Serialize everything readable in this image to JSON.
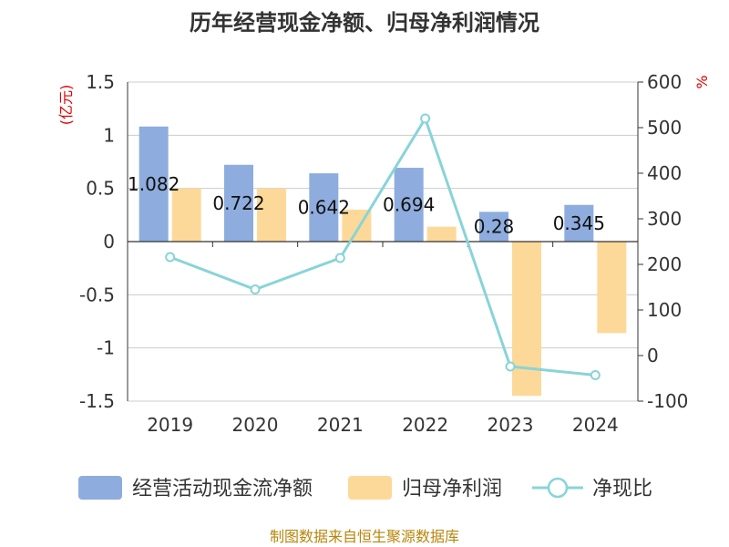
{
  "chart_data": {
    "type": "bar",
    "title": "历年经营现金净额、归母净利润情况",
    "categories": [
      "2019",
      "2020",
      "2021",
      "2022",
      "2023",
      "2024"
    ],
    "series": [
      {
        "name": "经营活动现金流净额",
        "type": "bar",
        "axis": "left",
        "color": "#8eadde",
        "values": [
          1.082,
          0.722,
          0.642,
          0.694,
          0.28,
          0.345
        ]
      },
      {
        "name": "归母净利润",
        "type": "bar",
        "axis": "left",
        "color": "#fdd999",
        "values": [
          0.5,
          0.5,
          0.3,
          0.14,
          -1.45,
          -0.86
        ]
      },
      {
        "name": "净现比",
        "type": "line",
        "axis": "right",
        "color": "#88d4d8",
        "values": [
          216,
          145,
          214,
          520,
          -24,
          -43
        ]
      }
    ],
    "data_labels": [
      "1.082",
      "0.722",
      "0.642",
      "0.694",
      "0.28",
      "0.345"
    ],
    "y_left": {
      "unit": "(亿元)",
      "ylim": [
        -1.5,
        1.5
      ],
      "ticks": [
        1.5,
        1,
        0.5,
        0,
        -0.5,
        -1,
        -1.5
      ],
      "tick_labels": [
        "1.5",
        "1",
        "0.5",
        "0",
        "-0.5",
        "-1",
        "-1.5"
      ]
    },
    "y_right": {
      "unit": "%",
      "ylim": [
        -100,
        600
      ],
      "ticks": [
        600,
        500,
        400,
        300,
        200,
        100,
        0,
        -100
      ],
      "tick_labels": [
        "600",
        "500",
        "400",
        "300",
        "200",
        "100",
        "0",
        "-100"
      ]
    },
    "grid": true,
    "legend_position": "bottom",
    "source": "制图数据来自恒生聚源数据库"
  }
}
